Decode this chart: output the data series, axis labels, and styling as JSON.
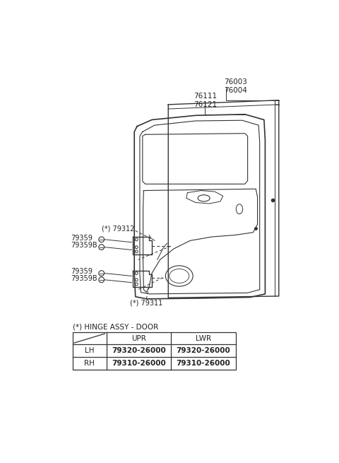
{
  "bg_color": "#ffffff",
  "line_color": "#333333",
  "text_color": "#222222",
  "label_76003_76004": "76003\n76004",
  "label_76111_76121": "76111\n76121",
  "label_79312": "(*) 79312",
  "label_79359_upper": "79359",
  "label_79359B_upper": "79359B",
  "label_79359_lower": "79359",
  "label_79359B_lower": "79359B",
  "label_79311": "(*) 79311",
  "table_title": "(*) HINGE ASSY - DOOR",
  "table_col1": "UPR",
  "table_col2": "LWR",
  "table_row1_label": "LH",
  "table_row1_col1": "79320-26000",
  "table_row1_col2": "79320-26000",
  "table_row2_label": "RH",
  "table_row2_col1": "79310-26000",
  "table_row2_col2": "79310-26000",
  "font_size_labels": 7.0,
  "font_size_table": 7.5
}
